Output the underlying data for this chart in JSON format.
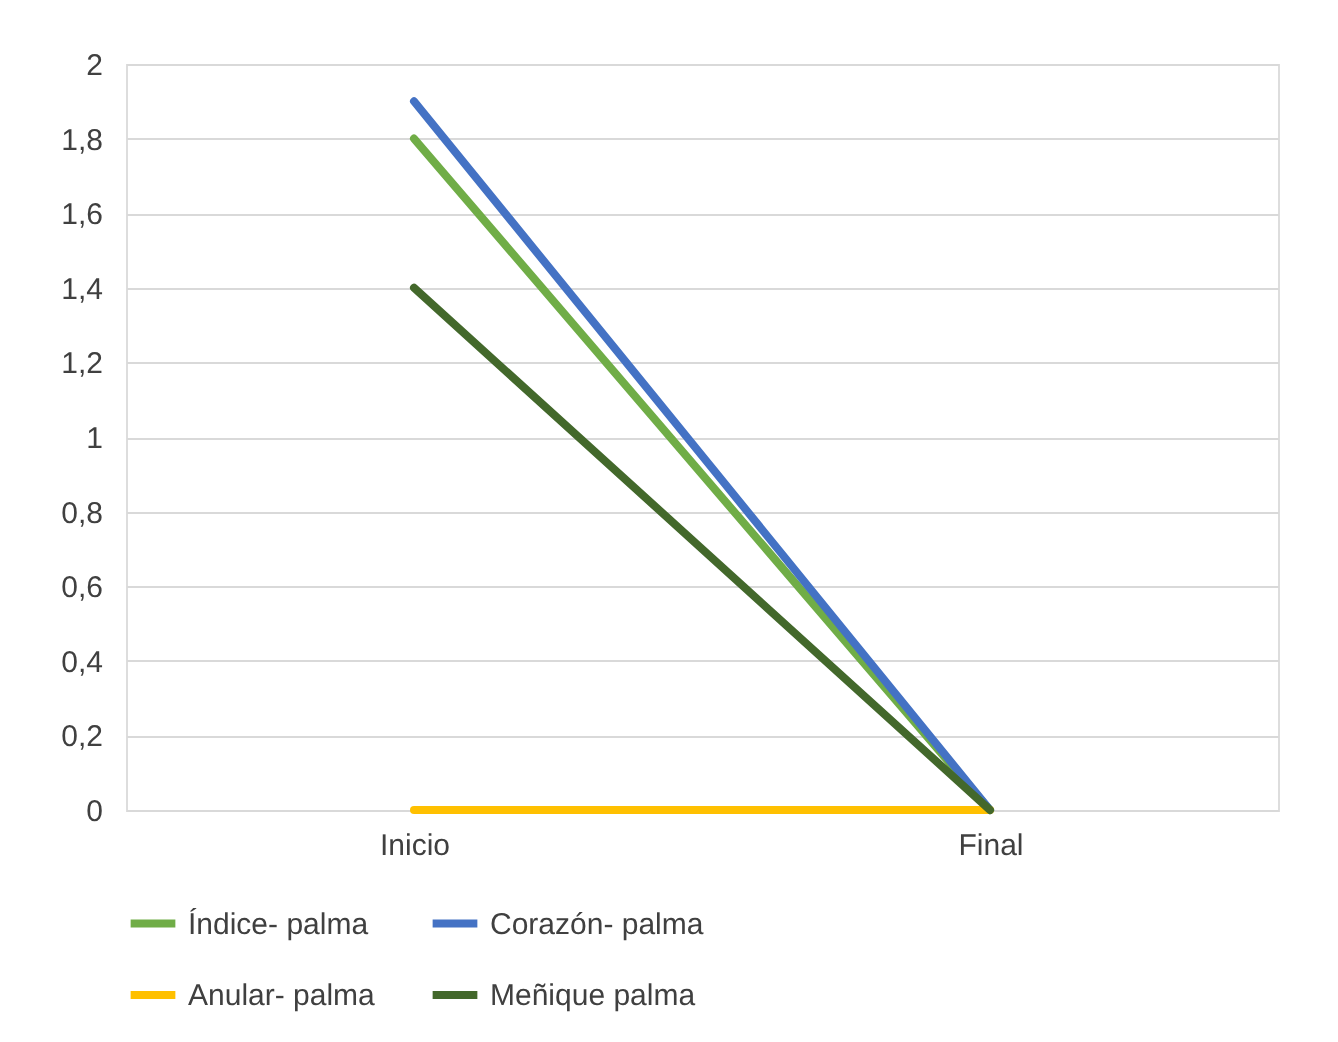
{
  "chart_data": {
    "type": "line",
    "categories": [
      "Inicio",
      "Final"
    ],
    "series": [
      {
        "name": "Índice- palma",
        "color": "#70ad47",
        "values": [
          1.8,
          0
        ]
      },
      {
        "name": "Corazón- palma",
        "color": "#4472c4",
        "values": [
          1.9,
          0
        ]
      },
      {
        "name": "Anular- palma",
        "color": "#ffc000",
        "values": [
          0,
          0
        ]
      },
      {
        "name": "Meñique palma",
        "color": "#43682b",
        "values": [
          1.4,
          0
        ]
      }
    ],
    "ylim": [
      0,
      2
    ],
    "yticks": [
      0,
      {
        "value": 0.2,
        "label": "0,2"
      },
      {
        "value": 0.4,
        "label": "0,4"
      },
      {
        "value": 0.6,
        "label": "0,6"
      },
      {
        "value": 0.8,
        "label": "0,8"
      },
      1,
      {
        "value": 1.2,
        "label": "1,2"
      },
      {
        "value": 1.4,
        "label": "1,4"
      },
      {
        "value": 1.6,
        "label": "1,6"
      },
      {
        "value": 1.8,
        "label": "1,8"
      },
      2
    ],
    "grid": "y",
    "legend": "bottom",
    "marker": "none",
    "line_style": "solid"
  }
}
